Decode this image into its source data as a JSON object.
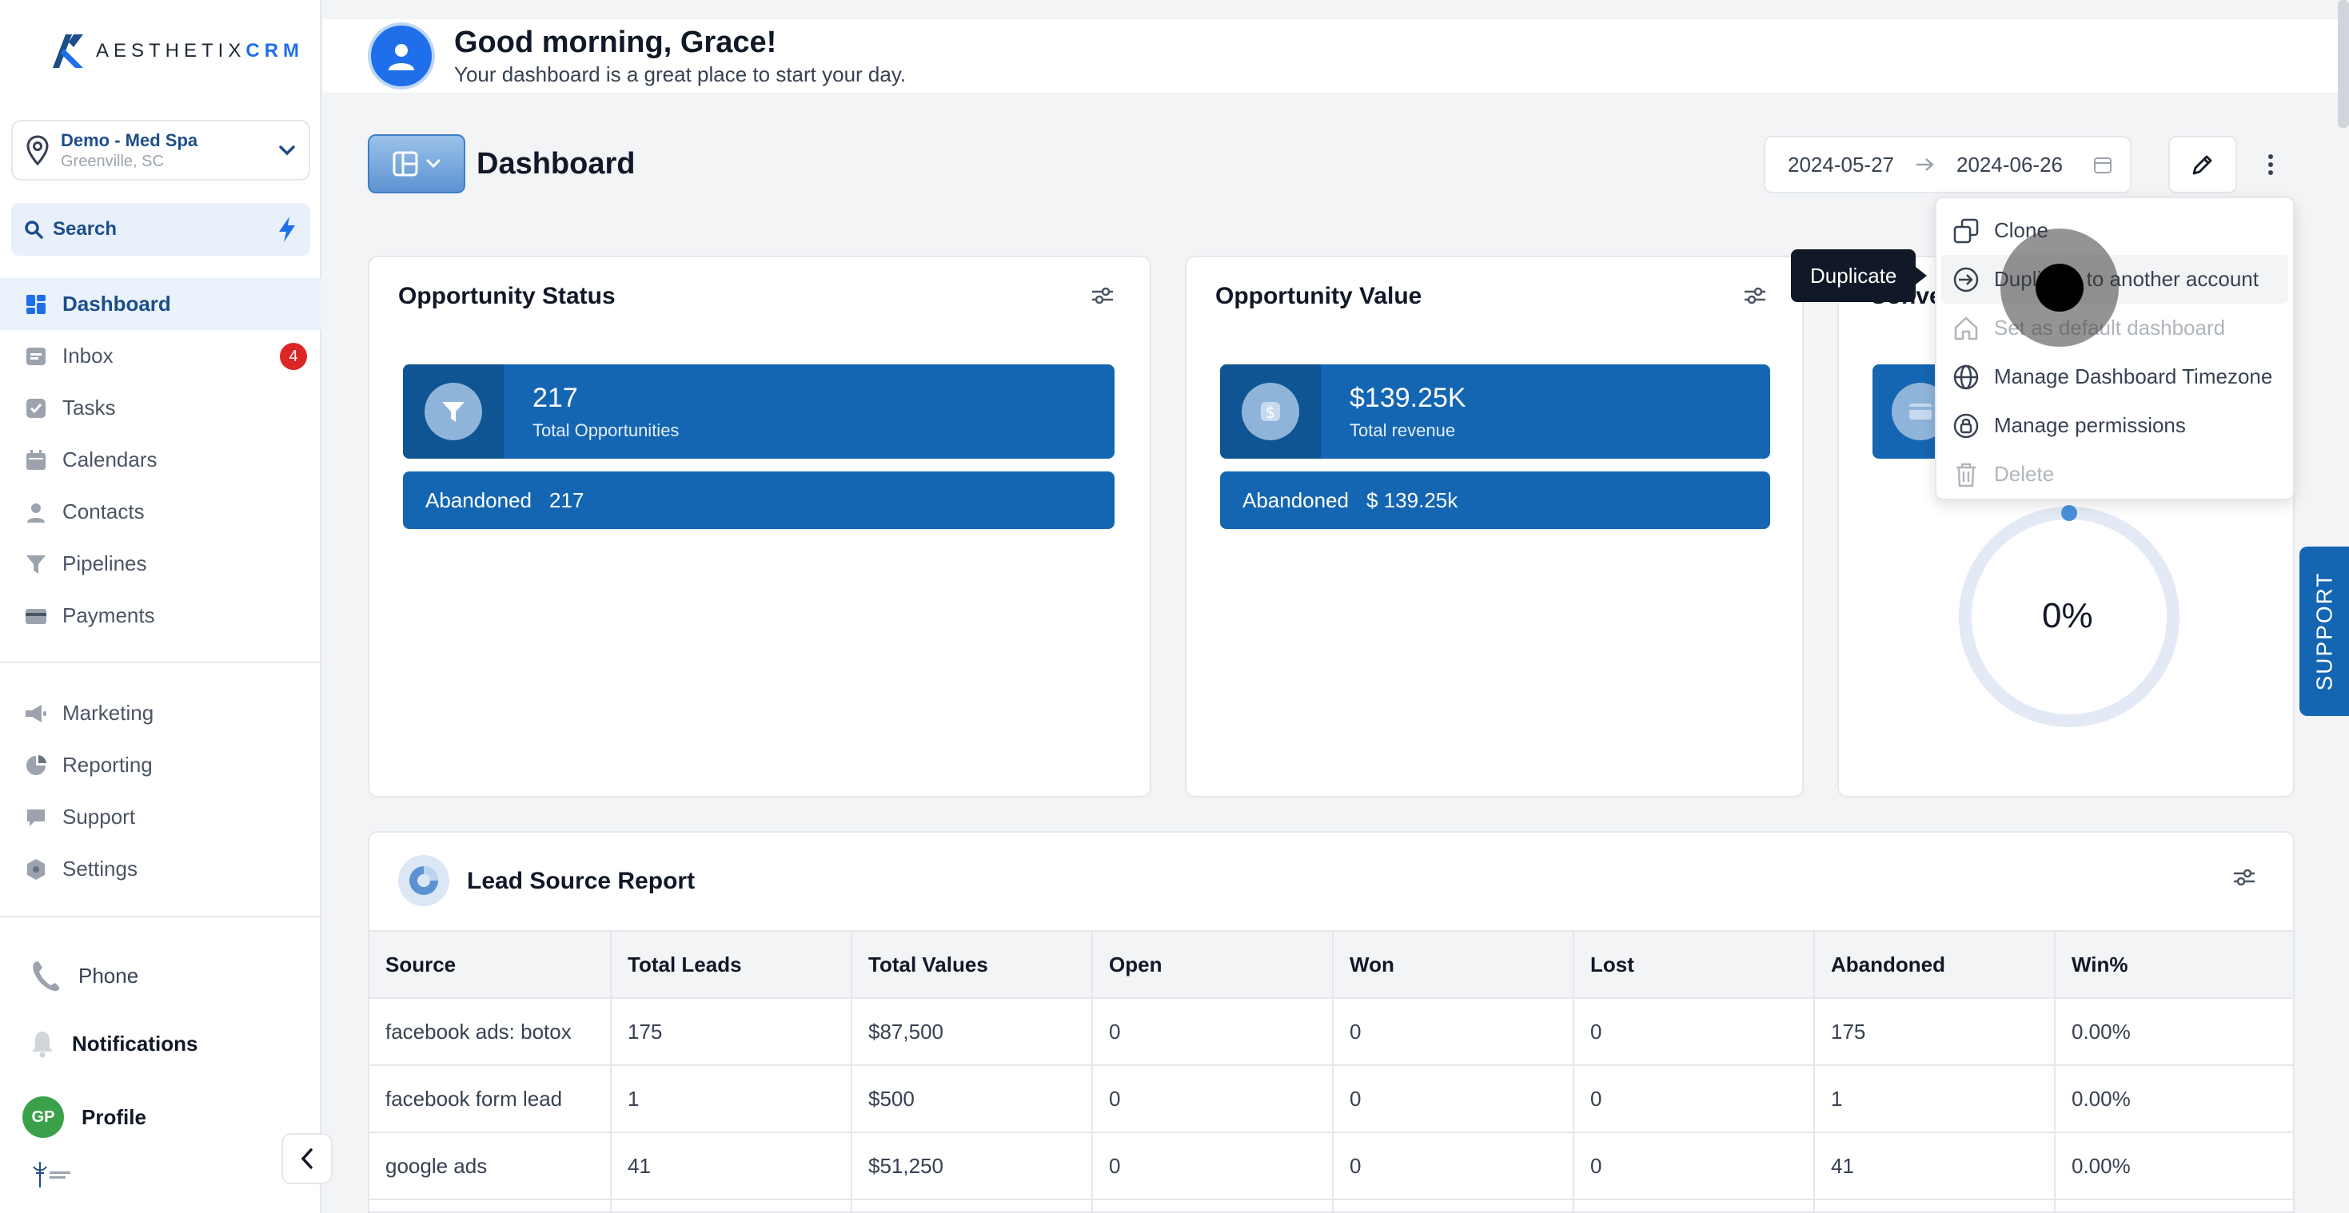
{
  "brand": {
    "logo_prefix": "AESTHETIX",
    "logo_suffix": "CRM"
  },
  "location": {
    "name": "Demo - Med Spa",
    "city": "Greenville, SC"
  },
  "search": {
    "label": "Search"
  },
  "nav": {
    "items": [
      {
        "label": "Dashboard",
        "icon": "dashboard-icon",
        "active": true
      },
      {
        "label": "Inbox",
        "icon": "inbox-icon",
        "badge": "4"
      },
      {
        "label": "Tasks",
        "icon": "tasks-icon"
      },
      {
        "label": "Calendars",
        "icon": "calendar-icon"
      },
      {
        "label": "Contacts",
        "icon": "contacts-icon"
      },
      {
        "label": "Pipelines",
        "icon": "pipelines-icon"
      },
      {
        "label": "Payments",
        "icon": "payments-icon"
      }
    ],
    "secondary": [
      {
        "label": "Marketing",
        "icon": "marketing-icon"
      },
      {
        "label": "Reporting",
        "icon": "reporting-icon"
      },
      {
        "label": "Support",
        "icon": "support-icon"
      },
      {
        "label": "Settings",
        "icon": "settings-icon"
      }
    ],
    "phone": "Phone",
    "notifications": "Notifications",
    "profile": "Profile",
    "profile_initials": "GP"
  },
  "header": {
    "greeting": "Good morning, Grace!",
    "subtitle": "Your dashboard is a great place to start your day."
  },
  "toolbar": {
    "title": "Dashboard",
    "date_start": "2024-05-27",
    "date_end": "2024-06-26"
  },
  "cards": {
    "opportunity_status": {
      "title": "Opportunity Status",
      "value": "217",
      "label": "Total Opportunities",
      "sub_label": "Abandoned",
      "sub_value": "217"
    },
    "opportunity_value": {
      "title": "Opportunity Value",
      "value": "$139.25K",
      "label": "Total revenue",
      "sub_label": "Abandoned",
      "sub_value": "$ 139.25k"
    },
    "conversion": {
      "title_partial": "Conve",
      "percent": "0%"
    }
  },
  "menu": {
    "items": [
      {
        "label": "Clone",
        "icon": "clone-icon",
        "disabled": false
      },
      {
        "label": "Duplicate to another account",
        "icon": "duplicate-icon",
        "disabled": false,
        "hover": true
      },
      {
        "label": "Set as default dashboard",
        "icon": "home-icon",
        "disabled": true
      },
      {
        "label": "Manage Dashboard Timezone",
        "icon": "globe-icon",
        "disabled": false
      },
      {
        "label": "Manage permissions",
        "icon": "lock-icon",
        "disabled": false
      },
      {
        "label": "Delete",
        "icon": "trash-icon",
        "disabled": true
      }
    ],
    "tooltip": "Duplicate"
  },
  "lead_source": {
    "title": "Lead Source Report",
    "columns": [
      "Source",
      "Total Leads",
      "Total Values",
      "Open",
      "Won",
      "Lost",
      "Abandoned",
      "Win%"
    ],
    "rows": [
      [
        "facebook ads: botox",
        "175",
        "$87,500",
        "0",
        "0",
        "0",
        "175",
        "0.00%"
      ],
      [
        "facebook form lead",
        "1",
        "$500",
        "0",
        "0",
        "0",
        "1",
        "0.00%"
      ],
      [
        "google ads",
        "41",
        "$51,250",
        "0",
        "0",
        "0",
        "41",
        "0.00%"
      ]
    ]
  },
  "support_tab": "SUPPORT",
  "colors": {
    "primary": "#1466b2",
    "primary_dark": "#0f5593",
    "badge": "#dc2626",
    "accent": "#1f6feb"
  }
}
